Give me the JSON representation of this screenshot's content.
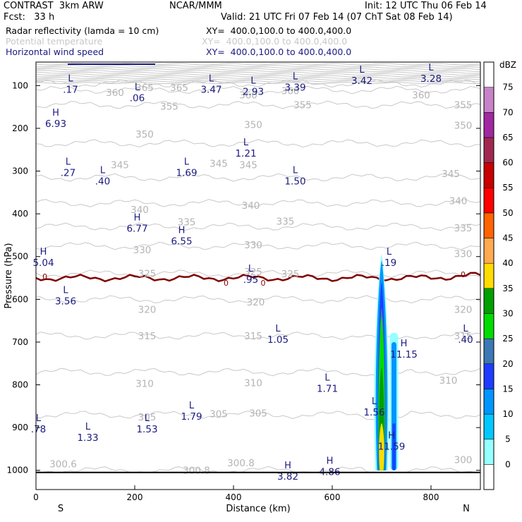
{
  "header": {
    "model": "CONTRAST  3km ARW",
    "org": "NCAR/MMM",
    "init": "Init: 12 UTC Thu 06 Feb 14",
    "fcst": "Fcst:   33 h",
    "valid": "Valid: 21 UTC Fri 07 Feb 14 (07 ChT Sat 08 Feb 14)"
  },
  "legend": [
    {
      "name": "Radar reflectivity (lamda = 10 cm)",
      "xy": "XY=  400.0,100.0 to 400.0,400.0",
      "color": "#000000"
    },
    {
      "name": "Potential temperature",
      "xy": "XY=  400.0,100.0 to 400.0,400.0",
      "color": "#c8c8c8"
    },
    {
      "name": "Horizontal wind speed",
      "xy": "XY=  400.0,100.0 to 400.0,400.0",
      "color": "#1a1a80"
    }
  ],
  "chart_data": {
    "type": "cross-section",
    "xlabel": "Distance (km)",
    "ylabel": "Pressure (hPa)",
    "xlim": [
      0,
      900
    ],
    "ylim_hpa": [
      1045,
      45
    ],
    "x_ticks": [
      "0",
      "200",
      "400",
      "600",
      "800"
    ],
    "y_ticks": [
      "100",
      "200",
      "300",
      "400",
      "500",
      "600",
      "700",
      "800",
      "900",
      "1000"
    ],
    "x_end_labels": {
      "left": "S",
      "right": "N"
    },
    "colorbar": {
      "unit": "dBZ",
      "levels": [
        "0",
        "5",
        "10",
        "15",
        "20",
        "25",
        "30",
        "35",
        "40",
        "45",
        "50",
        "55",
        "60",
        "65",
        "70",
        "75"
      ],
      "colors": [
        "#ffffff",
        "#96ffff",
        "#00c8ff",
        "#0096ff",
        "#1e3cff",
        "#3c78b4",
        "#00dc00",
        "#00a000",
        "#ffdc00",
        "#ffaa50",
        "#ff6400",
        "#ff0000",
        "#c80000",
        "#a02850",
        "#a028a0",
        "#c882c8",
        "#ffffff"
      ]
    },
    "theta_contours": [
      {
        "label": "300",
        "p": 1000
      },
      {
        "label": "305",
        "p": 870
      },
      {
        "label": "310",
        "p": 770
      },
      {
        "label": "315",
        "p": 685
      },
      {
        "label": "320",
        "p": 600
      },
      {
        "label": "325",
        "p": 540
      },
      {
        "label": "330",
        "p": 475
      },
      {
        "label": "335",
        "p": 430
      },
      {
        "label": "340",
        "p": 375
      },
      {
        "label": "345",
        "p": 315
      },
      {
        "label": "350",
        "p": 235
      },
      {
        "label": "355",
        "p": 145
      },
      {
        "label": "360",
        "p": 110
      },
      {
        "label": "365",
        "p": 95
      }
    ],
    "theta_labels": [
      {
        "text": "360",
        "x": 160,
        "p": 116
      },
      {
        "text": "365",
        "x": 220,
        "p": 104
      },
      {
        "text": "365",
        "x": 290,
        "p": 104
      },
      {
        "text": "355",
        "x": 270,
        "p": 148
      },
      {
        "text": "355",
        "x": 540,
        "p": 145
      },
      {
        "text": "360",
        "x": 430,
        "p": 122
      },
      {
        "text": "360",
        "x": 515,
        "p": 112
      },
      {
        "text": "360",
        "x": 780,
        "p": 122
      },
      {
        "text": "355",
        "x": 865,
        "p": 145
      },
      {
        "text": "350",
        "x": 220,
        "p": 213
      },
      {
        "text": "350",
        "x": 440,
        "p": 191
      },
      {
        "text": "350",
        "x": 865,
        "p": 193
      },
      {
        "text": "345",
        "x": 170,
        "p": 285
      },
      {
        "text": "345",
        "x": 370,
        "p": 282
      },
      {
        "text": "345",
        "x": 430,
        "p": 285
      },
      {
        "text": "345",
        "x": 840,
        "p": 306
      },
      {
        "text": "340",
        "x": 210,
        "p": 390
      },
      {
        "text": "340",
        "x": 435,
        "p": 380
      },
      {
        "text": "340",
        "x": 855,
        "p": 369
      },
      {
        "text": "335",
        "x": 305,
        "p": 419
      },
      {
        "text": "335",
        "x": 505,
        "p": 417
      },
      {
        "text": "335",
        "x": 865,
        "p": 433
      },
      {
        "text": "330",
        "x": 215,
        "p": 484
      },
      {
        "text": "330",
        "x": 440,
        "p": 472
      },
      {
        "text": "330",
        "x": 865,
        "p": 493
      },
      {
        "text": "325",
        "x": 225,
        "p": 539
      },
      {
        "text": "325",
        "x": 440,
        "p": 535
      },
      {
        "text": "325",
        "x": 515,
        "p": 540
      },
      {
        "text": "320",
        "x": 225,
        "p": 623
      },
      {
        "text": "320",
        "x": 445,
        "p": 606
      },
      {
        "text": "320",
        "x": 865,
        "p": 623
      },
      {
        "text": "315",
        "x": 225,
        "p": 685
      },
      {
        "text": "315",
        "x": 440,
        "p": 685
      },
      {
        "text": "315",
        "x": 865,
        "p": 685
      },
      {
        "text": "310",
        "x": 220,
        "p": 797
      },
      {
        "text": "310",
        "x": 440,
        "p": 795
      },
      {
        "text": "310",
        "x": 835,
        "p": 789
      },
      {
        "text": "305",
        "x": 225,
        "p": 875
      },
      {
        "text": "305",
        "x": 370,
        "p": 868
      },
      {
        "text": "305",
        "x": 450,
        "p": 866
      },
      {
        "text": "300.6",
        "x": 55,
        "p": 985
      },
      {
        "text": "300.8",
        "x": 325,
        "p": 1000
      },
      {
        "text": "300.8",
        "x": 415,
        "p": 982
      },
      {
        "text": "300",
        "x": 865,
        "p": 975
      },
      {
        "text": "0",
        "x": 18,
        "p": 545
      },
      {
        "text": "0",
        "x": 385,
        "p": 560
      },
      {
        "text": "0",
        "x": 460,
        "p": 560
      },
      {
        "text": "0",
        "x": 865,
        "p": 540
      }
    ],
    "wind_labels": [
      {
        "kind": "L",
        "val": ".17",
        "x": 70,
        "p": 100
      },
      {
        "kind": "L",
        "val": ".06",
        "x": 205,
        "p": 120
      },
      {
        "kind": "L",
        "val": "3.47",
        "x": 355,
        "p": 100
      },
      {
        "kind": "L",
        "val": "2.93",
        "x": 440,
        "p": 105
      },
      {
        "kind": "L",
        "val": "3.39",
        "x": 525,
        "p": 95
      },
      {
        "kind": "L",
        "val": "3.42",
        "x": 660,
        "p": 80
      },
      {
        "kind": "L",
        "val": "3.28",
        "x": 800,
        "p": 75
      },
      {
        "kind": "H",
        "val": "6.93",
        "x": 40,
        "p": 180
      },
      {
        "kind": "L",
        "val": "1.21",
        "x": 425,
        "p": 250
      },
      {
        "kind": "L",
        "val": ".27",
        "x": 65,
        "p": 295
      },
      {
        "kind": "L",
        "val": ".40",
        "x": 135,
        "p": 315
      },
      {
        "kind": "L",
        "val": "1.69",
        "x": 305,
        "p": 295
      },
      {
        "kind": "L",
        "val": "1.50",
        "x": 525,
        "p": 315
      },
      {
        "kind": "H",
        "val": "6.77",
        "x": 205,
        "p": 425
      },
      {
        "kind": "H",
        "val": "6.55",
        "x": 295,
        "p": 455
      },
      {
        "kind": "H",
        "val": "5.04",
        "x": 15,
        "p": 505
      },
      {
        "kind": "L",
        "val": ".19",
        "x": 715,
        "p": 505
      },
      {
        "kind": "L",
        "val": ".95",
        "x": 435,
        "p": 545
      },
      {
        "kind": "L",
        "val": "3.56",
        "x": 60,
        "p": 595
      },
      {
        "kind": "L",
        "val": "1.05",
        "x": 490,
        "p": 685
      },
      {
        "kind": "L",
        "val": ".40",
        "x": 870,
        "p": 685
      },
      {
        "kind": "H",
        "val": "11.15",
        "x": 745,
        "p": 720
      },
      {
        "kind": "L",
        "val": "1.71",
        "x": 590,
        "p": 800
      },
      {
        "kind": "L",
        "val": "1.56",
        "x": 685,
        "p": 855
      },
      {
        "kind": "L",
        "val": "1.79",
        "x": 315,
        "p": 865
      },
      {
        "kind": "L",
        "val": "1.53",
        "x": 225,
        "p": 895
      },
      {
        "kind": "L",
        "val": ".78",
        "x": 5,
        "p": 895
      },
      {
        "kind": "L",
        "val": "1.33",
        "x": 105,
        "p": 915
      },
      {
        "kind": "H",
        "val": "11.59",
        "x": 720,
        "p": 935
      },
      {
        "kind": "H",
        "val": "3.82",
        "x": 510,
        "p": 1005
      },
      {
        "kind": "H",
        "val": "4.86",
        "x": 595,
        "p": 995
      }
    ],
    "reflectivity_core": [
      {
        "x_km": 700,
        "p_top": 495,
        "max_dbz": 35
      },
      {
        "x_km": 725,
        "p_top": 680,
        "max_dbz": 15
      }
    ]
  }
}
